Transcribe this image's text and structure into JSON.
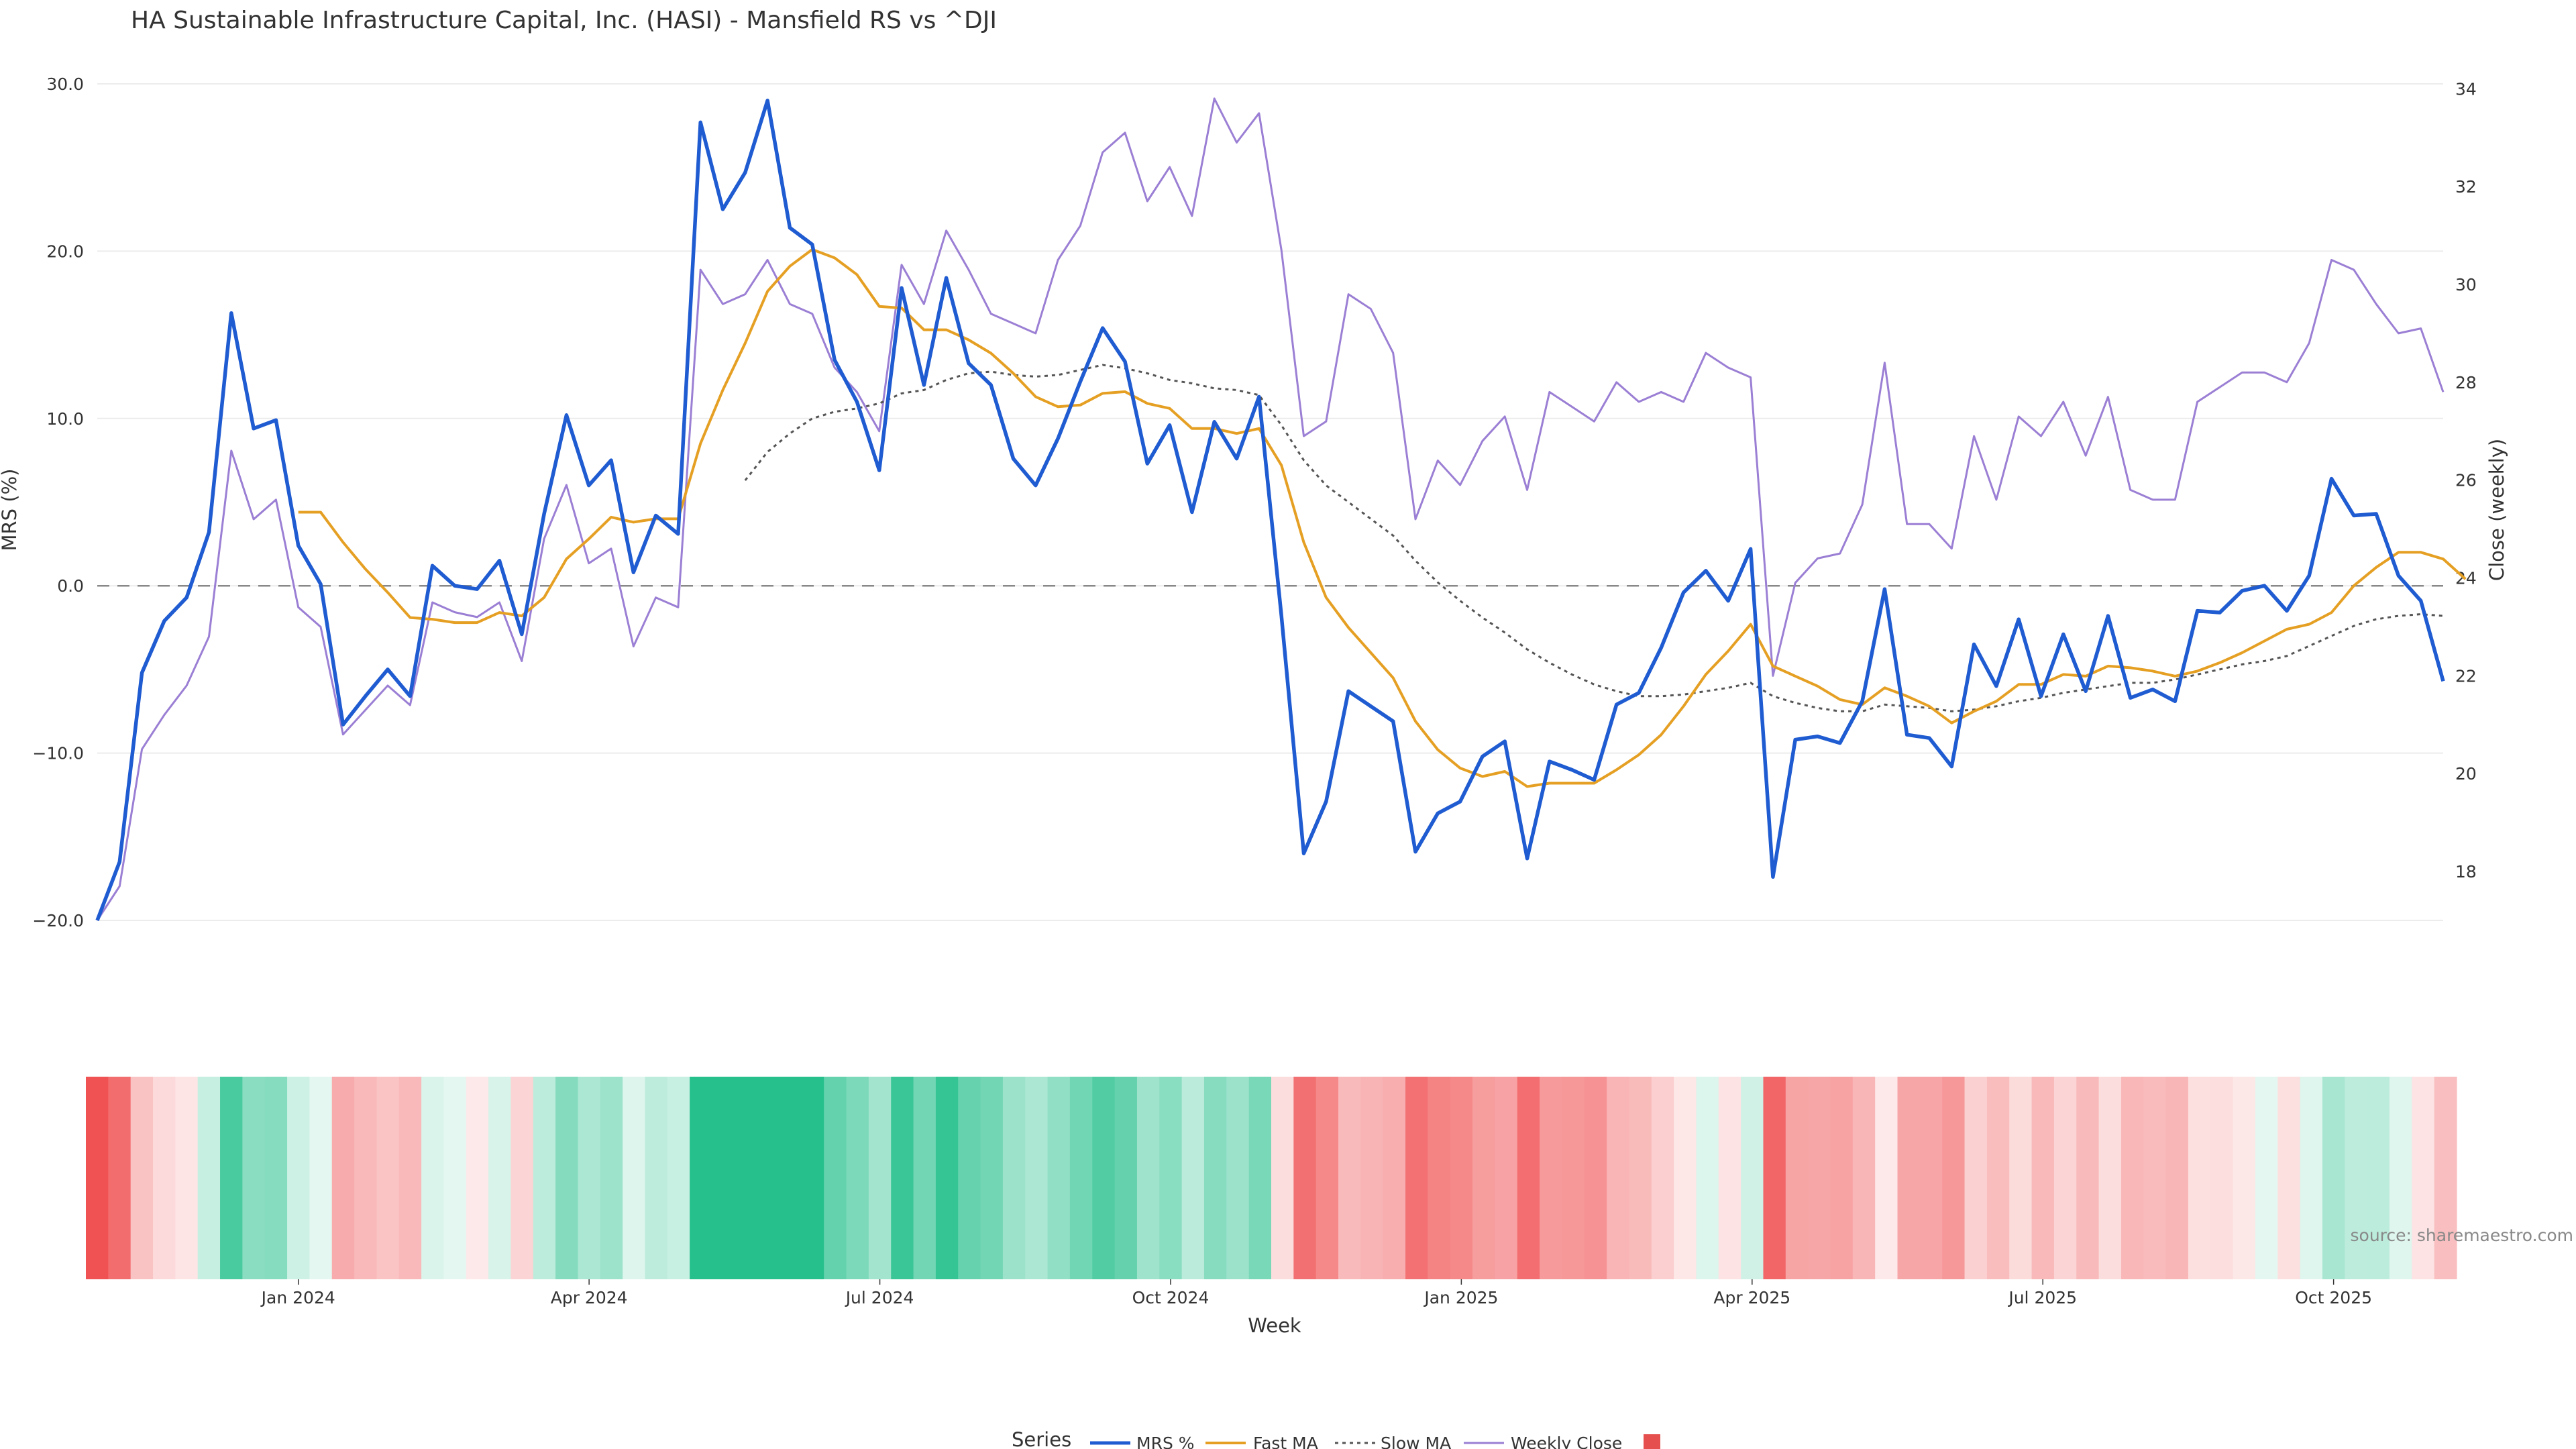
{
  "chart_data": {
    "type": "line",
    "title": "HA Sustainable Infrastructure Capital, Inc. (HASI) - Mansfield RS vs ^DJI",
    "xlabel": "Week",
    "ylabel": "MRS (%)",
    "y2label": "Close (weekly)",
    "ylim": [
      -20,
      30
    ],
    "y2lim": [
      17,
      34.1
    ],
    "yticks": [
      "30.0",
      "20.0",
      "10.0",
      "0.0",
      "−10.0",
      "−20.0"
    ],
    "y2ticks": [
      "34",
      "32",
      "30",
      "28",
      "26",
      "24",
      "22",
      "20",
      "18"
    ],
    "xticks": [
      "Jan 2024",
      "Apr 2024",
      "Jul 2024",
      "Oct 2024",
      "Jan 2025",
      "Apr 2025",
      "Jul 2025",
      "Oct 2025"
    ],
    "source": "source: sharemaestro.com",
    "legend": {
      "title": "Series",
      "placement": "bottom",
      "items": [
        "MRS %",
        "Fast MA",
        "Slow MA",
        "Weekly Close",
        ""
      ]
    },
    "colors": {
      "mrs": "#1f5bd1",
      "fast": "#e5a024",
      "slow": "#555555",
      "close": "#9b7fd4",
      "zero": "#888888",
      "marker": "#e5504f"
    },
    "series": [
      {
        "name": "MRS %",
        "values": [
          -20.0,
          -16.5,
          -5.2,
          -2.1,
          -0.7,
          3.2,
          16.3,
          9.4,
          9.9,
          2.4,
          0.1,
          -8.3,
          -6.6,
          -5.0,
          -6.6,
          1.2,
          0.0,
          -0.2,
          1.5,
          -2.9,
          4.3,
          10.2,
          6.0,
          7.5,
          0.8,
          4.2,
          3.1,
          27.7,
          22.5,
          24.7,
          29.0,
          21.4,
          20.4,
          13.5,
          11.0,
          6.9,
          17.8,
          12.0,
          18.4,
          13.3,
          12.0,
          7.6,
          6.0,
          8.8,
          12.2,
          15.4,
          13.4,
          7.3,
          9.6,
          4.4,
          9.8,
          7.6,
          11.3,
          -1.8,
          -16.0,
          -12.9,
          -6.3,
          -7.2,
          -8.1,
          -15.9,
          -13.6,
          -12.9,
          -10.2,
          -9.3,
          -16.3,
          -10.5,
          -11.0,
          -11.6,
          -7.1,
          -6.4,
          -3.7,
          -0.4,
          0.9,
          -0.9,
          2.2,
          -17.4,
          -9.2,
          -9.0,
          -9.4,
          -6.9,
          -0.2,
          -8.9,
          -9.1,
          -10.8,
          -3.5,
          -6.0,
          -2.0,
          -6.6,
          -2.9,
          -6.3,
          -1.8,
          -6.7,
          -6.2,
          -6.9,
          -1.5,
          -1.6,
          -0.3,
          0.0,
          -1.5,
          0.6,
          6.4,
          4.2,
          4.3,
          0.6,
          -0.9,
          -5.7
        ]
      },
      {
        "name": "Fast MA",
        "values": [
          null,
          null,
          null,
          null,
          null,
          null,
          null,
          null,
          null,
          4.4,
          4.4,
          2.6,
          1.0,
          -0.4,
          -1.9,
          -2.0,
          -2.2,
          -2.2,
          -1.6,
          -1.8,
          -0.7,
          1.6,
          2.8,
          4.1,
          3.8,
          4.0,
          4.0,
          8.5,
          11.7,
          14.5,
          17.6,
          19.1,
          20.1,
          19.6,
          18.6,
          16.7,
          16.6,
          15.3,
          15.3,
          14.7,
          13.9,
          12.7,
          11.3,
          10.7,
          10.8,
          11.5,
          11.6,
          10.9,
          10.6,
          9.4,
          9.4,
          9.1,
          9.4,
          7.2,
          2.6,
          -0.7,
          -2.5,
          -4.0,
          -5.5,
          -8.1,
          -9.8,
          -10.9,
          -11.4,
          -11.1,
          -12.0,
          -11.8,
          -11.8,
          -11.8,
          -11.0,
          -10.1,
          -8.9,
          -7.2,
          -5.3,
          -3.9,
          -2.3,
          -4.8,
          -5.4,
          -6.0,
          -6.8,
          -7.1,
          -6.1,
          -6.6,
          -7.2,
          -8.2,
          -7.5,
          -6.9,
          -5.9,
          -5.9,
          -5.3,
          -5.4,
          -4.8,
          -4.9,
          -5.1,
          -5.4,
          -5.1,
          -4.6,
          -4.0,
          -3.3,
          -2.6,
          -2.3,
          -1.6,
          0.0,
          1.1,
          2.0,
          2.0,
          1.6,
          0.4
        ]
      },
      {
        "name": "Slow MA",
        "values": [
          null,
          null,
          null,
          null,
          null,
          null,
          null,
          null,
          null,
          null,
          null,
          null,
          null,
          null,
          null,
          null,
          null,
          null,
          null,
          null,
          null,
          null,
          null,
          null,
          null,
          null,
          null,
          null,
          null,
          6.3,
          8.0,
          9.1,
          10.0,
          10.4,
          10.6,
          10.9,
          11.5,
          11.7,
          12.3,
          12.7,
          12.8,
          12.6,
          12.5,
          12.6,
          12.9,
          13.2,
          13.0,
          12.7,
          12.3,
          12.1,
          11.8,
          11.7,
          11.4,
          9.6,
          7.5,
          6.0,
          5.0,
          4.0,
          3.0,
          1.5,
          0.2,
          -0.9,
          -1.9,
          -2.8,
          -3.8,
          -4.6,
          -5.3,
          -5.9,
          -6.3,
          -6.6,
          -6.6,
          -6.5,
          -6.3,
          -6.1,
          -5.8,
          -6.6,
          -7.0,
          -7.3,
          -7.5,
          -7.5,
          -7.1,
          -7.2,
          -7.3,
          -7.5,
          -7.4,
          -7.2,
          -6.9,
          -6.7,
          -6.4,
          -6.2,
          -6.0,
          -5.8,
          -5.8,
          -5.6,
          -5.3,
          -5.0,
          -4.7,
          -4.5,
          -4.2,
          -3.6,
          -3.0,
          -2.4,
          -2.0,
          -1.8,
          -1.7,
          -1.8
        ]
      },
      {
        "name": "Weekly Close",
        "axis": "y2",
        "values": [
          17.0,
          17.7,
          20.5,
          21.2,
          21.8,
          22.8,
          26.6,
          25.2,
          25.6,
          23.4,
          23.0,
          20.8,
          21.3,
          21.8,
          21.4,
          23.5,
          23.3,
          23.2,
          23.5,
          22.3,
          24.8,
          25.9,
          24.3,
          24.6,
          22.6,
          23.6,
          23.4,
          30.3,
          29.6,
          29.8,
          30.5,
          29.6,
          29.4,
          28.3,
          27.8,
          27.0,
          30.4,
          29.6,
          31.1,
          30.3,
          29.4,
          29.2,
          29.0,
          30.5,
          31.2,
          32.7,
          33.1,
          31.7,
          32.4,
          31.4,
          33.8,
          32.9,
          33.5,
          30.7,
          26.9,
          27.2,
          29.8,
          29.5,
          28.6,
          25.2,
          26.4,
          25.9,
          26.8,
          27.3,
          25.8,
          27.8,
          27.5,
          27.2,
          28.0,
          27.6,
          27.8,
          27.6,
          28.6,
          28.3,
          28.1,
          22.0,
          23.9,
          24.4,
          24.5,
          25.5,
          28.4,
          25.1,
          25.1,
          24.6,
          26.9,
          25.6,
          27.3,
          26.9,
          27.6,
          26.5,
          27.7,
          25.8,
          25.6,
          25.6,
          27.6,
          27.9,
          28.2,
          28.2,
          28.0,
          28.8,
          30.5,
          30.3,
          29.6,
          29.0,
          29.1,
          27.8
        ]
      }
    ],
    "heatmap": {
      "description_values": "Mansfield RS regime strip, one cell per week",
      "values": [
        -20.0,
        -16.5,
        -5.2,
        -2.1,
        -0.7,
        3.2,
        16.3,
        9.4,
        9.9,
        2.4,
        0.1,
        -8.3,
        -6.6,
        -5.0,
        -6.6,
        1.2,
        0.0,
        -0.2,
        1.5,
        -2.9,
        4.3,
        10.2,
        6.0,
        7.5,
        0.8,
        4.2,
        3.1,
        27.7,
        22.5,
        24.7,
        29.0,
        21.4,
        20.4,
        13.5,
        11.0,
        6.9,
        17.8,
        12.0,
        18.4,
        13.3,
        12.0,
        7.6,
        6.0,
        8.8,
        12.2,
        15.4,
        13.4,
        7.3,
        9.6,
        4.4,
        9.8,
        7.6,
        11.3,
        -1.8,
        -16.0,
        -12.9,
        -6.3,
        -7.2,
        -8.1,
        -15.9,
        -13.6,
        -12.9,
        -10.2,
        -9.3,
        -16.3,
        -10.5,
        -11.0,
        -11.6,
        -7.1,
        -6.4,
        -3.7,
        -0.4,
        0.9,
        -0.9,
        2.2,
        -17.4,
        -9.2,
        -9.0,
        -9.4,
        -6.9,
        -0.2,
        -8.9,
        -9.1,
        -10.8,
        -3.5,
        -6.0,
        -2.0,
        -6.6,
        -2.9,
        -6.3,
        -1.8,
        -6.7,
        -6.2,
        -6.9,
        -1.5,
        -1.6,
        -0.3,
        0.0,
        -1.5,
        0.6,
        6.4,
        4.2,
        4.3,
        0.6,
        -0.9,
        -5.7
      ]
    }
  }
}
